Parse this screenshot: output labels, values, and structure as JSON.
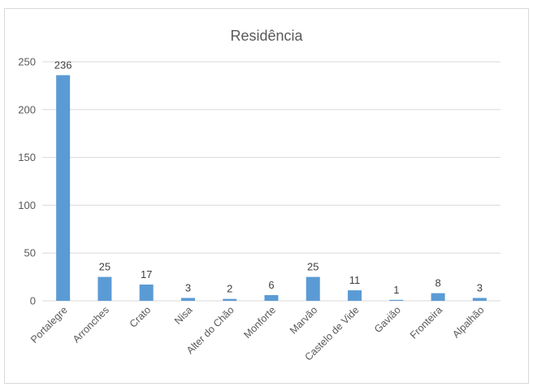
{
  "chart_data": {
    "type": "bar",
    "title": "Residência",
    "categories": [
      "Portalegre",
      "Arronches",
      "Crato",
      "Nisa",
      "Alter do Chão",
      "Monforte",
      "Marvão",
      "Castelo de Vide",
      "Gavião",
      "Fronteira",
      "Alpalhão"
    ],
    "values": [
      236,
      25,
      17,
      3,
      2,
      6,
      25,
      11,
      1,
      8,
      3
    ],
    "ylim": [
      0,
      250
    ],
    "yticks": [
      0,
      50,
      100,
      150,
      200,
      250
    ],
    "grid": true,
    "legend": "none",
    "bar_color": "#5B9BD5",
    "grid_color": "#d9d9d9"
  }
}
